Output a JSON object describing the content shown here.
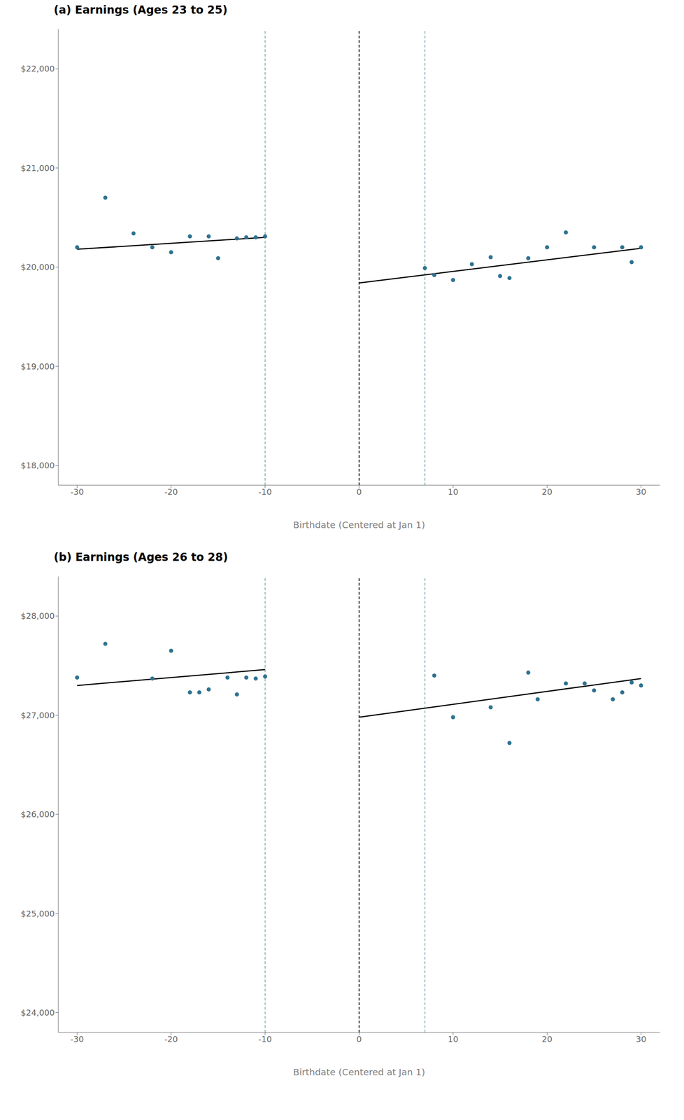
{
  "chart_data": [
    {
      "type": "scatter",
      "title": "(a) Earnings (Ages 23 to 25)",
      "x_label": "Birthdate (Centered at Jan 1)",
      "xlim": [
        -32,
        32
      ],
      "xticks": [
        -30,
        -20,
        -10,
        0,
        10,
        20,
        30
      ],
      "ylim": [
        17800,
        22400
      ],
      "yticks": [
        {
          "value": 18000,
          "label": "$18,000"
        },
        {
          "value": 19000,
          "label": "$19,000"
        },
        {
          "value": 20000,
          "label": "$20,000"
        },
        {
          "value": 21000,
          "label": "$21,000"
        },
        {
          "value": 22000,
          "label": "$22,000"
        }
      ],
      "grid": false,
      "series": [
        {
          "type": "scatter",
          "color": "#2e7291",
          "marker": "circle",
          "x": [
            -30,
            -27,
            -24,
            -22,
            -20,
            -18,
            -16,
            -15,
            -13,
            -12,
            -11,
            -10
          ],
          "values": [
            20200,
            20700,
            20340,
            20200,
            20150,
            20310,
            20310,
            20090,
            20290,
            20300,
            20300,
            20310
          ]
        },
        {
          "type": "scatter",
          "color": "#2e7291",
          "marker": "circle",
          "x": [
            7,
            8,
            10,
            12,
            14,
            15,
            16,
            18,
            20,
            22,
            25,
            28,
            29,
            30
          ],
          "values": [
            19990,
            19920,
            19870,
            20030,
            20100,
            19910,
            19890,
            20090,
            20200,
            20350,
            20200,
            20200,
            20050,
            20200
          ]
        },
        {
          "type": "line",
          "color": "#000000",
          "line_style": "solid",
          "x": [
            -30,
            -10
          ],
          "values": [
            20180,
            20300
          ]
        },
        {
          "type": "line",
          "color": "#000000",
          "line_style": "solid",
          "x": [
            0,
            30
          ],
          "values": [
            19840,
            20190
          ]
        }
      ],
      "vlines": [
        {
          "x": -10,
          "color": "#8fb8bc",
          "line_style": "dashed"
        },
        {
          "x": 7,
          "color": "#8fb8bc",
          "line_style": "dashed"
        },
        {
          "x": 0,
          "color": "#000000",
          "line_style": "dashed"
        }
      ]
    },
    {
      "type": "scatter",
      "title": "(b) Earnings (Ages 26 to 28)",
      "x_label": "Birthdate (Centered at Jan 1)",
      "xlim": [
        -32,
        32
      ],
      "xticks": [
        -30,
        -20,
        -10,
        0,
        10,
        20,
        30
      ],
      "ylim": [
        23800,
        28400
      ],
      "yticks": [
        {
          "value": 24000,
          "label": "$24,000"
        },
        {
          "value": 25000,
          "label": "$25,000"
        },
        {
          "value": 26000,
          "label": "$26,000"
        },
        {
          "value": 27000,
          "label": "$27,000"
        },
        {
          "value": 28000,
          "label": "$28,000"
        }
      ],
      "grid": false,
      "series": [
        {
          "type": "scatter",
          "color": "#2e7291",
          "marker": "circle",
          "x": [
            -30,
            -27,
            -22,
            -20,
            -18,
            -17,
            -16,
            -14,
            -13,
            -12,
            -11,
            -10
          ],
          "values": [
            27380,
            27720,
            27370,
            27650,
            27230,
            27230,
            27260,
            27380,
            27210,
            27380,
            27370,
            27390
          ]
        },
        {
          "type": "scatter",
          "color": "#2e7291",
          "marker": "circle",
          "x": [
            8,
            10,
            14,
            16,
            18,
            19,
            22,
            24,
            25,
            27,
            28,
            29,
            30
          ],
          "values": [
            27400,
            26980,
            27080,
            26720,
            27430,
            27160,
            27320,
            27320,
            27250,
            27160,
            27230,
            27330,
            27300
          ]
        },
        {
          "type": "line",
          "color": "#000000",
          "line_style": "solid",
          "x": [
            -30,
            -10
          ],
          "values": [
            27300,
            27460
          ]
        },
        {
          "type": "line",
          "color": "#000000",
          "line_style": "solid",
          "x": [
            0,
            30
          ],
          "values": [
            26980,
            27370
          ]
        }
      ],
      "vlines": [
        {
          "x": -10,
          "color": "#8fb8bc",
          "line_style": "dashed"
        },
        {
          "x": 7,
          "color": "#8fb8bc",
          "line_style": "dashed"
        },
        {
          "x": 0,
          "color": "#000000",
          "line_style": "dashed"
        }
      ]
    }
  ]
}
